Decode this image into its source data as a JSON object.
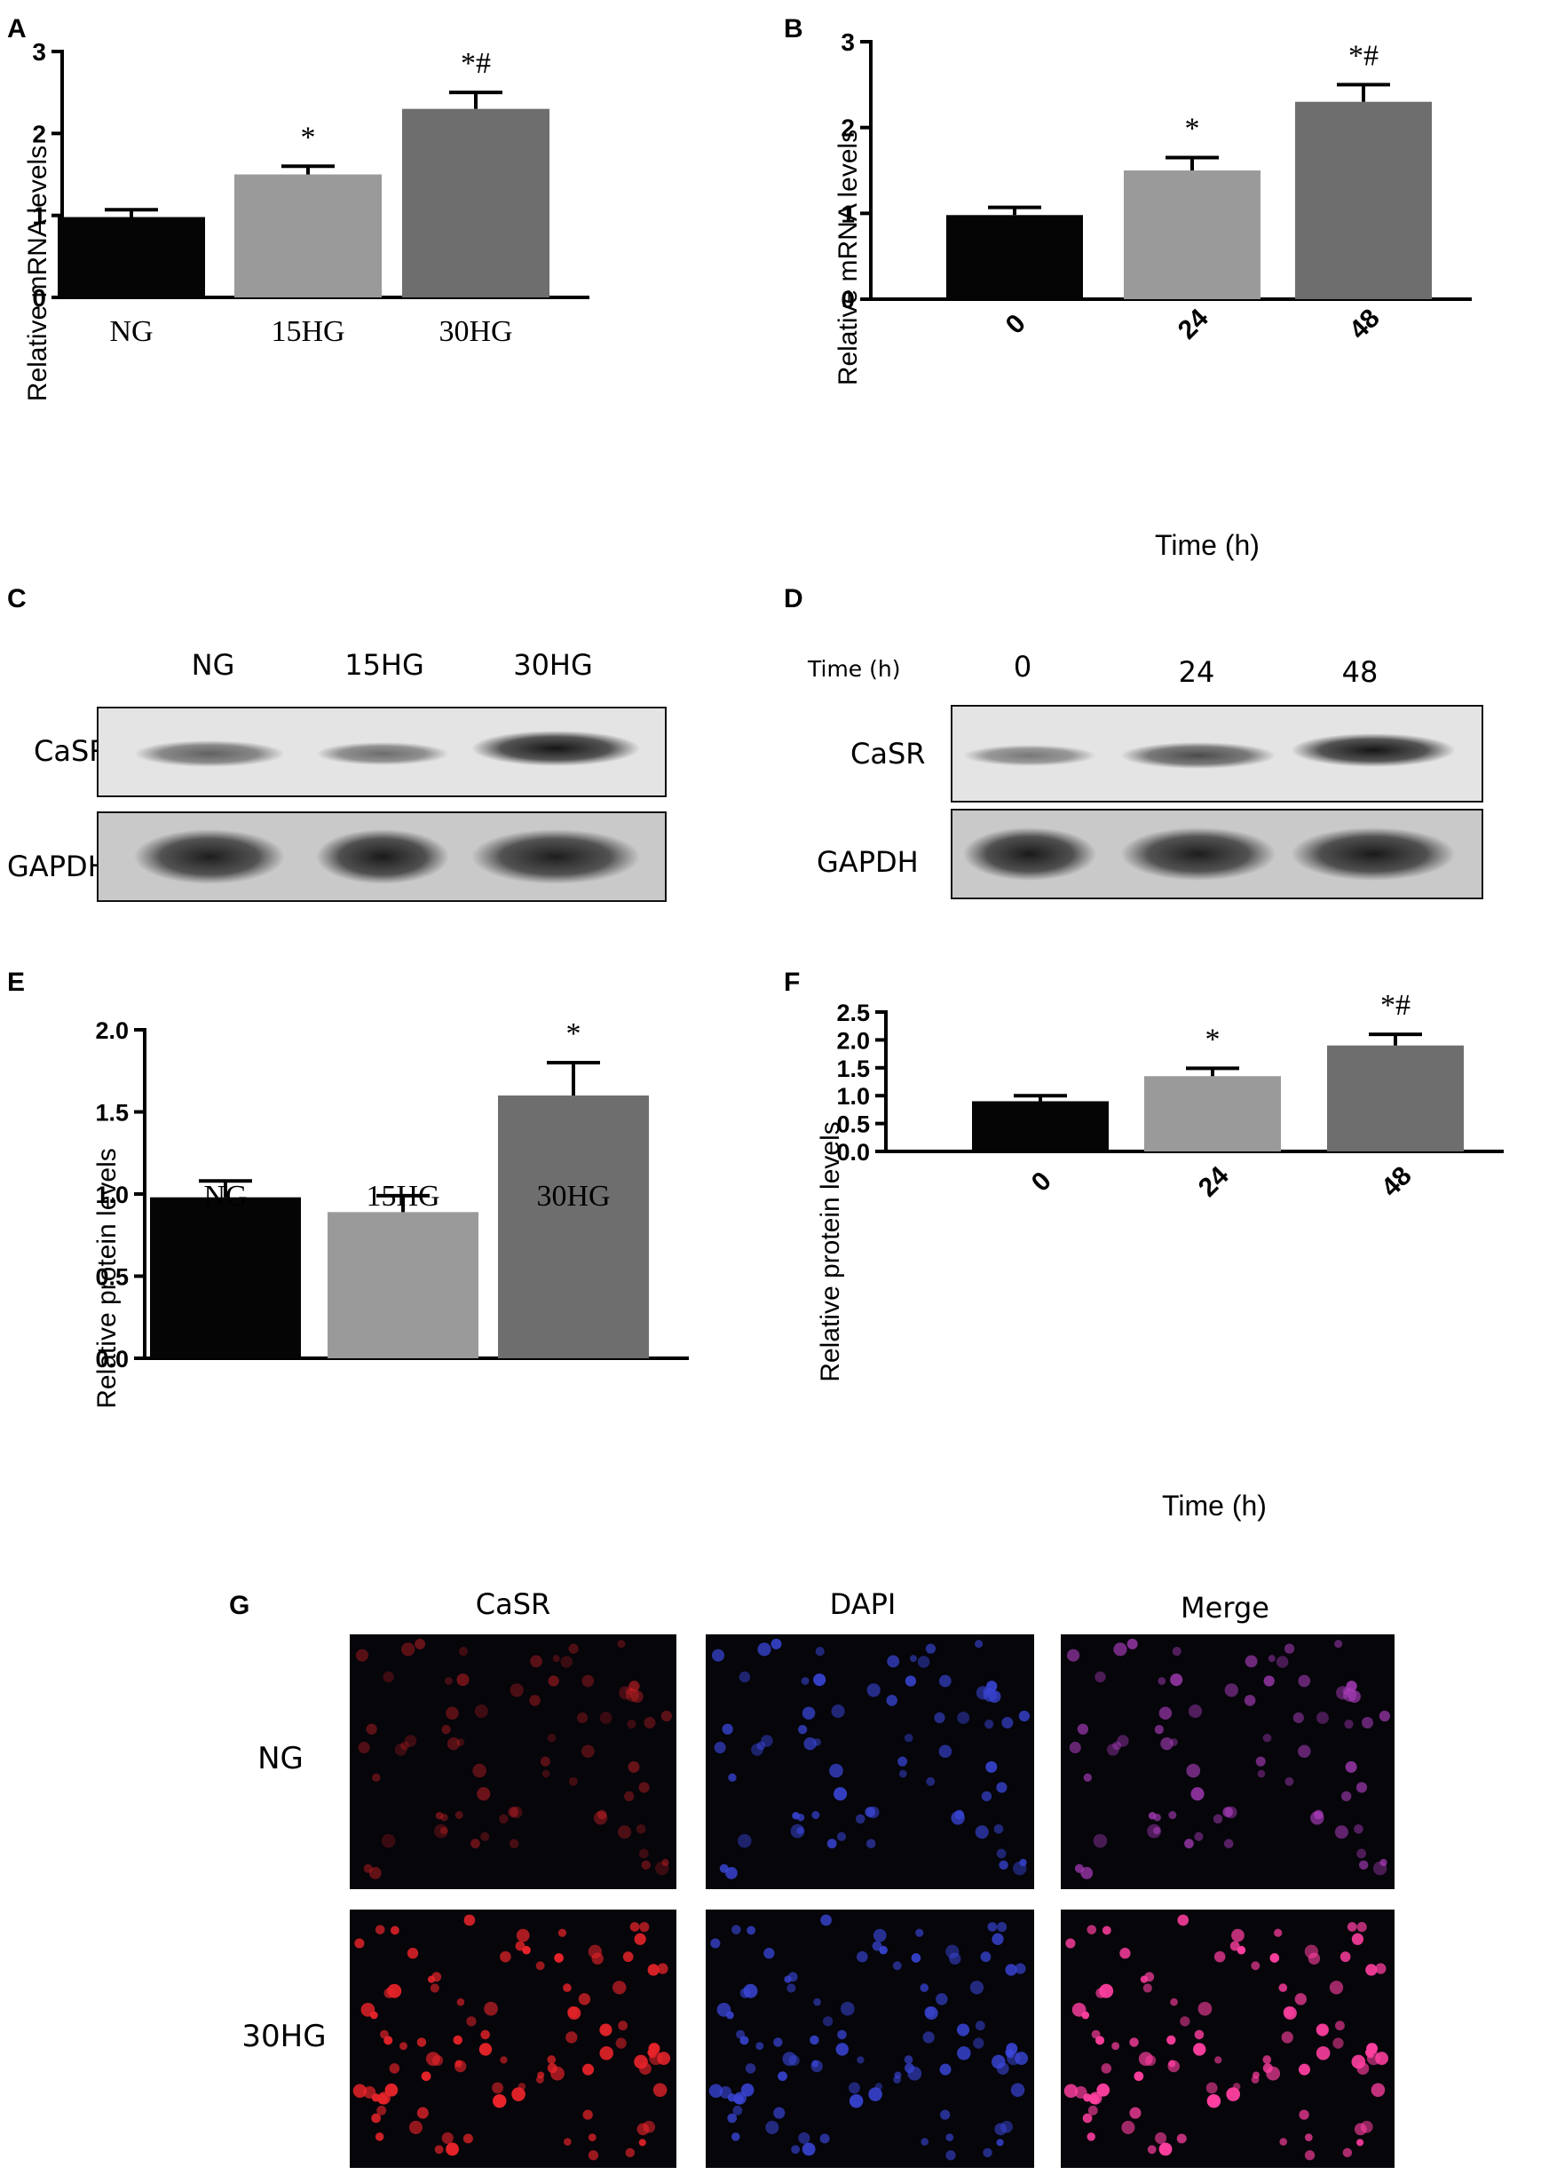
{
  "chart_data": [
    {
      "id": "A",
      "type": "bar",
      "panel_label": "A",
      "categories": [
        "NG",
        "15HG",
        "30HG"
      ],
      "values": [
        0.98,
        1.5,
        2.3
      ],
      "errors": [
        0.09,
        0.1,
        0.2
      ],
      "significance": [
        "",
        "*",
        "*#"
      ],
      "colors": [
        "#050505",
        "#9a9a9a",
        "#6e6e6e"
      ],
      "ylabel": "Relative mRNA levels",
      "xlabel": "",
      "ylim": [
        0,
        3
      ],
      "yticks": [
        0,
        1,
        2,
        3
      ],
      "ytick_labels": [
        "0",
        "1",
        "2",
        "3"
      ],
      "grid": false
    },
    {
      "id": "B",
      "type": "bar",
      "panel_label": "B",
      "categories": [
        "0",
        "24",
        "48"
      ],
      "values": [
        0.98,
        1.5,
        2.3
      ],
      "errors": [
        0.09,
        0.15,
        0.2
      ],
      "significance": [
        "",
        "*",
        "*#"
      ],
      "colors": [
        "#050505",
        "#9a9a9a",
        "#6e6e6e"
      ],
      "ylabel": "Relative mRNA levels",
      "xlabel": "Time (h)",
      "ylim": [
        0,
        3
      ],
      "yticks": [
        0,
        1,
        2,
        3
      ],
      "ytick_labels": [
        "0",
        "1",
        "2",
        "3"
      ],
      "grid": false
    },
    {
      "id": "E",
      "type": "bar",
      "panel_label": "E",
      "categories": [
        "NG",
        "15HG",
        "30HG"
      ],
      "values": [
        0.98,
        0.89,
        1.6
      ],
      "errors": [
        0.1,
        0.1,
        0.2
      ],
      "significance": [
        "",
        "",
        "*"
      ],
      "colors": [
        "#050505",
        "#9a9a9a",
        "#6e6e6e"
      ],
      "ylabel": "Relative protein levels",
      "xlabel": "",
      "ylim": [
        0,
        2
      ],
      "yticks": [
        0,
        0.5,
        1,
        1.5,
        2
      ],
      "ytick_labels": [
        "0.0",
        "0.5",
        "1.0",
        "1.5",
        "2.0"
      ],
      "grid": false
    },
    {
      "id": "F",
      "type": "bar",
      "panel_label": "F",
      "categories": [
        "0",
        "24",
        "48"
      ],
      "values": [
        0.9,
        1.35,
        1.9
      ],
      "errors": [
        0.1,
        0.14,
        0.2
      ],
      "significance": [
        "",
        "*",
        "*#"
      ],
      "colors": [
        "#050505",
        "#9a9a9a",
        "#6e6e6e"
      ],
      "ylabel": "Relative protein levels",
      "xlabel": "Time (h)",
      "ylim": [
        0,
        2.5
      ],
      "yticks": [
        0,
        0.5,
        1,
        1.5,
        2,
        2.5
      ],
      "ytick_labels": [
        "0.0",
        "0.5",
        "1.0",
        "1.5",
        "2.0",
        "2.5"
      ],
      "grid": false
    }
  ],
  "blots": [
    {
      "panel_label": "C",
      "lane_labels": [
        "NG",
        "15HG",
        "30HG"
      ],
      "header": "",
      "rows": [
        {
          "label": "CaSR",
          "intensities": [
            0.6,
            0.55,
            0.95
          ]
        },
        {
          "label": "GAPDH",
          "intensities": [
            0.9,
            0.92,
            0.9
          ]
        }
      ]
    },
    {
      "panel_label": "D",
      "lane_labels": [
        "0",
        "24",
        "48"
      ],
      "header": "Time (h)",
      "rows": [
        {
          "label": "CaSR",
          "intensities": [
            0.5,
            0.7,
            0.95
          ]
        },
        {
          "label": "GAPDH",
          "intensities": [
            0.92,
            0.9,
            0.92
          ]
        }
      ]
    }
  ],
  "fluorescence": {
    "panel_label": "G",
    "channels": [
      {
        "name": "CaSR",
        "color": "#e8242a"
      },
      {
        "name": "DAPI",
        "color": "#3a46d8"
      },
      {
        "name": "Merge",
        "color": "#222222"
      }
    ],
    "rows": [
      {
        "label": "NG",
        "intensity": 0.45
      },
      {
        "label": "30HG",
        "intensity": 1.0
      }
    ]
  }
}
